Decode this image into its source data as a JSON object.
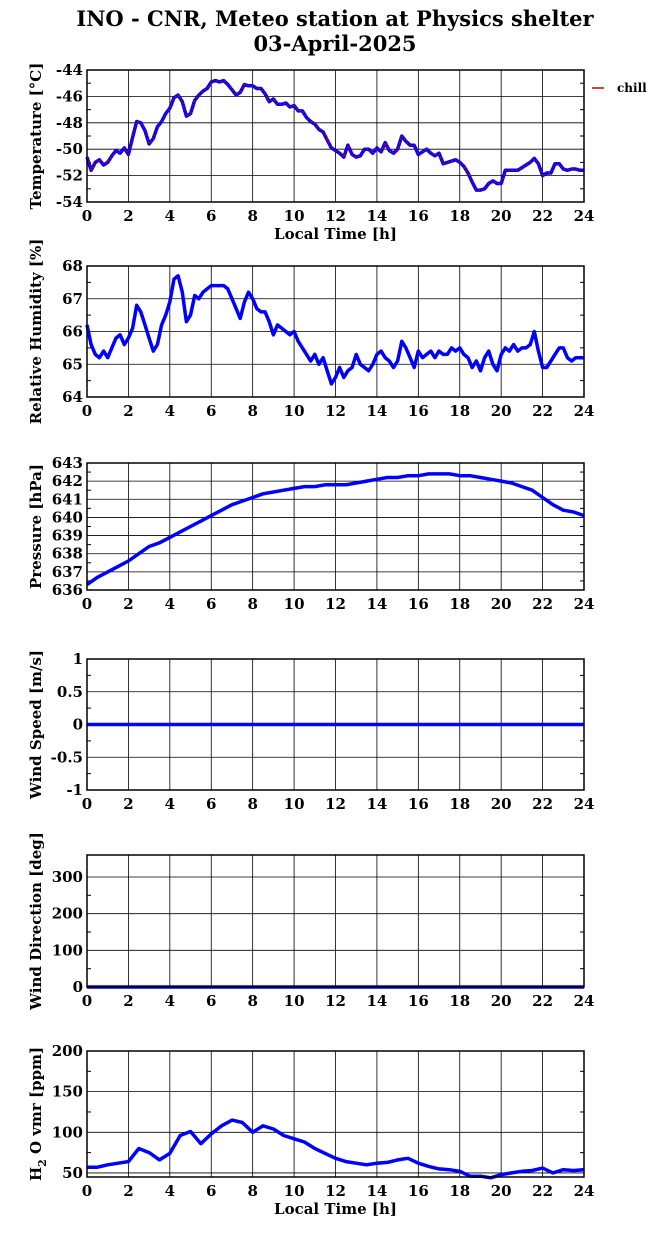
{
  "title": {
    "line1": "INO - CNR, Meteo station at Physics shelter",
    "line2": "03-April-2025"
  },
  "colors": {
    "series": "#0000ff",
    "chill": "#cc0000",
    "axis": "#000000"
  },
  "chart_data": [
    {
      "id": "temperature",
      "type": "line",
      "ylabel": "Temperature [°C]",
      "xlabel": "Local Time [h]",
      "xlim": [
        0,
        24
      ],
      "ylim": [
        -54,
        -44
      ],
      "xticks": [
        0,
        2,
        4,
        6,
        8,
        10,
        12,
        14,
        16,
        18,
        20,
        22,
        24
      ],
      "yticks": [
        -54,
        -52,
        -50,
        -48,
        -46,
        -44
      ],
      "grid": true,
      "legend": {
        "entries": [
          "chill"
        ],
        "placement": "right"
      },
      "series": [
        {
          "name": "",
          "color": "#0000ff",
          "x": [
            0,
            0.2,
            0.4,
            0.6,
            0.8,
            1.0,
            1.2,
            1.4,
            1.6,
            1.8,
            2.0,
            2.2,
            2.4,
            2.6,
            2.8,
            3.0,
            3.2,
            3.4,
            3.6,
            3.8,
            4.0,
            4.2,
            4.4,
            4.6,
            4.8,
            5.0,
            5.2,
            5.4,
            5.6,
            5.8,
            6.0,
            6.2,
            6.4,
            6.6,
            6.8,
            7.0,
            7.2,
            7.4,
            7.6,
            7.8,
            8.0,
            8.2,
            8.4,
            8.6,
            8.8,
            9.0,
            9.2,
            9.4,
            9.6,
            9.8,
            10.0,
            10.2,
            10.4,
            10.6,
            10.8,
            11.0,
            11.2,
            11.4,
            11.6,
            11.8,
            12.0,
            12.2,
            12.4,
            12.6,
            12.8,
            13.0,
            13.2,
            13.4,
            13.6,
            13.8,
            14.0,
            14.2,
            14.4,
            14.6,
            14.8,
            15.0,
            15.2,
            15.4,
            15.6,
            15.8,
            16.0,
            16.2,
            16.4,
            16.6,
            16.8,
            17.0,
            17.2,
            17.4,
            17.6,
            17.8,
            18.0,
            18.2,
            18.4,
            18.6,
            18.8,
            19.0,
            19.2,
            19.4,
            19.6,
            19.8,
            20.0,
            20.2,
            20.4,
            20.6,
            20.8,
            21.0,
            21.2,
            21.4,
            21.6,
            21.8,
            22.0,
            22.2,
            22.4,
            22.6,
            22.8,
            23.0,
            23.2,
            23.4,
            23.6,
            23.8,
            24.0
          ],
          "y": [
            -50.6,
            -51.6,
            -51.0,
            -50.8,
            -51.2,
            -51.0,
            -50.5,
            -50.1,
            -50.3,
            -49.9,
            -50.4,
            -49.1,
            -47.9,
            -48.0,
            -48.6,
            -49.6,
            -49.2,
            -48.3,
            -47.9,
            -47.3,
            -46.9,
            -46.1,
            -45.9,
            -46.4,
            -47.5,
            -47.3,
            -46.3,
            -45.9,
            -45.6,
            -45.4,
            -44.9,
            -44.8,
            -44.9,
            -44.8,
            -45.1,
            -45.5,
            -45.9,
            -45.7,
            -45.1,
            -45.2,
            -45.2,
            -45.4,
            -45.4,
            -45.8,
            -46.4,
            -46.2,
            -46.6,
            -46.6,
            -46.5,
            -46.8,
            -46.7,
            -47.1,
            -47.1,
            -47.6,
            -47.9,
            -48.1,
            -48.5,
            -48.7,
            -49.3,
            -49.9,
            -50.1,
            -50.3,
            -50.6,
            -49.7,
            -50.4,
            -50.6,
            -50.5,
            -50.0,
            -50.0,
            -50.3,
            -49.9,
            -50.2,
            -49.5,
            -50.1,
            -50.3,
            -50.0,
            -49.0,
            -49.4,
            -49.7,
            -49.7,
            -50.4,
            -50.2,
            -50.0,
            -50.3,
            -50.5,
            -50.3,
            -51.1,
            -51.0,
            -50.9,
            -50.8,
            -51.0,
            -51.3,
            -51.8,
            -52.5,
            -53.1,
            -53.1,
            -53.0,
            -52.6,
            -52.4,
            -52.6,
            -52.6,
            -51.6,
            -51.6,
            -51.6,
            -51.6,
            -51.4,
            -51.2,
            -51.0,
            -50.7,
            -51.1,
            -52.0,
            -51.8,
            -51.8,
            -51.1,
            -51.1,
            -51.5,
            -51.6,
            -51.5,
            -51.5,
            -51.6,
            -51.6
          ]
        }
      ]
    },
    {
      "id": "humidity",
      "type": "line",
      "ylabel": "Relative Humidity [%]",
      "xlim": [
        0,
        24
      ],
      "ylim": [
        64,
        68
      ],
      "xticks": [
        0,
        2,
        4,
        6,
        8,
        10,
        12,
        14,
        16,
        18,
        20,
        22,
        24
      ],
      "yticks": [
        64,
        65,
        66,
        67,
        68
      ],
      "grid": true,
      "series": [
        {
          "name": "",
          "color": "#0000ff",
          "x": [
            0,
            0.2,
            0.4,
            0.6,
            0.8,
            1.0,
            1.2,
            1.4,
            1.6,
            1.8,
            2.0,
            2.2,
            2.4,
            2.6,
            2.8,
            3.0,
            3.2,
            3.4,
            3.6,
            3.8,
            4.0,
            4.2,
            4.4,
            4.6,
            4.8,
            5.0,
            5.2,
            5.4,
            5.6,
            5.8,
            6.0,
            6.2,
            6.4,
            6.6,
            6.8,
            7.0,
            7.2,
            7.4,
            7.6,
            7.8,
            8.0,
            8.2,
            8.4,
            8.6,
            8.8,
            9.0,
            9.2,
            9.4,
            9.6,
            9.8,
            10.0,
            10.2,
            10.4,
            10.6,
            10.8,
            11.0,
            11.2,
            11.4,
            11.6,
            11.8,
            12.0,
            12.2,
            12.4,
            12.6,
            12.8,
            13.0,
            13.2,
            13.4,
            13.6,
            13.8,
            14.0,
            14.2,
            14.4,
            14.6,
            14.8,
            15.0,
            15.2,
            15.4,
            15.6,
            15.8,
            16.0,
            16.2,
            16.4,
            16.6,
            16.8,
            17.0,
            17.2,
            17.4,
            17.6,
            17.8,
            18.0,
            18.2,
            18.4,
            18.6,
            18.8,
            19.0,
            19.2,
            19.4,
            19.6,
            19.8,
            20.0,
            20.2,
            20.4,
            20.6,
            20.8,
            21.0,
            21.2,
            21.4,
            21.6,
            21.8,
            22.0,
            22.2,
            22.4,
            22.6,
            22.8,
            23.0,
            23.2,
            23.4,
            23.6,
            23.8,
            24.0
          ],
          "y": [
            66.2,
            65.6,
            65.3,
            65.2,
            65.4,
            65.2,
            65.5,
            65.8,
            65.9,
            65.6,
            65.8,
            66.1,
            66.8,
            66.6,
            66.2,
            65.8,
            65.4,
            65.6,
            66.2,
            66.5,
            66.9,
            67.6,
            67.7,
            67.2,
            66.3,
            66.5,
            67.1,
            67.0,
            67.2,
            67.3,
            67.4,
            67.4,
            67.4,
            67.4,
            67.3,
            67.0,
            66.7,
            66.4,
            66.9,
            67.2,
            67.0,
            66.7,
            66.6,
            66.6,
            66.3,
            65.9,
            66.2,
            66.1,
            66.0,
            65.9,
            66.0,
            65.7,
            65.5,
            65.3,
            65.1,
            65.3,
            65.0,
            65.2,
            64.8,
            64.4,
            64.6,
            64.9,
            64.6,
            64.8,
            64.9,
            65.3,
            65.0,
            64.9,
            64.8,
            65.0,
            65.3,
            65.4,
            65.2,
            65.1,
            64.9,
            65.1,
            65.7,
            65.5,
            65.2,
            64.9,
            65.4,
            65.2,
            65.3,
            65.4,
            65.2,
            65.4,
            65.3,
            65.3,
            65.5,
            65.4,
            65.5,
            65.3,
            65.2,
            64.9,
            65.1,
            64.8,
            65.2,
            65.4,
            65.0,
            64.8,
            65.3,
            65.5,
            65.4,
            65.6,
            65.4,
            65.5,
            65.5,
            65.6,
            66.0,
            65.4,
            64.9,
            64.9,
            65.1,
            65.3,
            65.5,
            65.5,
            65.2,
            65.1,
            65.2,
            65.2,
            65.2
          ]
        }
      ]
    },
    {
      "id": "pressure",
      "type": "line",
      "ylabel": "Pressure [hPa]",
      "xlim": [
        0,
        24
      ],
      "ylim": [
        636,
        643
      ],
      "xticks": [
        0,
        2,
        4,
        6,
        8,
        10,
        12,
        14,
        16,
        18,
        20,
        22,
        24
      ],
      "yticks": [
        636,
        637,
        638,
        639,
        640,
        641,
        642,
        643
      ],
      "grid": true,
      "series": [
        {
          "name": "",
          "color": "#0000ff",
          "x": [
            0,
            0.5,
            1.0,
            1.5,
            2.0,
            2.5,
            3.0,
            3.5,
            4.0,
            4.5,
            5.0,
            5.5,
            6.0,
            6.5,
            7.0,
            7.5,
            8.0,
            8.5,
            9.0,
            9.5,
            10.0,
            10.5,
            11.0,
            11.5,
            12.0,
            12.5,
            13.0,
            13.5,
            14.0,
            14.5,
            15.0,
            15.5,
            16.0,
            16.5,
            17.0,
            17.5,
            18.0,
            18.5,
            19.0,
            19.5,
            20.0,
            20.5,
            21.0,
            21.5,
            22.0,
            22.5,
            23.0,
            23.5,
            24.0
          ],
          "y": [
            636.3,
            636.7,
            637.0,
            637.3,
            637.6,
            638.0,
            638.4,
            638.6,
            638.9,
            639.2,
            639.5,
            639.8,
            640.1,
            640.4,
            640.7,
            640.9,
            641.1,
            641.3,
            641.4,
            641.5,
            641.6,
            641.7,
            641.7,
            641.8,
            641.8,
            641.8,
            641.9,
            642.0,
            642.1,
            642.2,
            642.2,
            642.3,
            642.3,
            642.4,
            642.4,
            642.4,
            642.3,
            642.3,
            642.2,
            642.1,
            642.0,
            641.9,
            641.7,
            641.5,
            641.1,
            640.7,
            640.4,
            640.3,
            640.1
          ]
        }
      ]
    },
    {
      "id": "wind-speed",
      "type": "line",
      "ylabel": "Wind Speed [m/s]",
      "xlim": [
        0,
        24
      ],
      "ylim": [
        -1,
        1
      ],
      "xticks": [
        0,
        2,
        4,
        6,
        8,
        10,
        12,
        14,
        16,
        18,
        20,
        22,
        24
      ],
      "yticks": [
        -1,
        -0.5,
        0,
        0.5,
        1
      ],
      "grid": true,
      "series": [
        {
          "name": "",
          "color": "#0000ff",
          "x": [
            0,
            24
          ],
          "y": [
            0,
            0
          ]
        }
      ]
    },
    {
      "id": "wind-direction",
      "type": "line",
      "ylabel": "Wind Direction [deg]",
      "xlim": [
        0,
        24
      ],
      "ylim": [
        0,
        360
      ],
      "xticks": [
        0,
        2,
        4,
        6,
        8,
        10,
        12,
        14,
        16,
        18,
        20,
        22,
        24
      ],
      "yticks": [
        0,
        100,
        200,
        300
      ],
      "grid": true,
      "series": [
        {
          "name": "",
          "color": "#0000ff",
          "x": [
            0,
            24
          ],
          "y": [
            0,
            0
          ]
        }
      ]
    },
    {
      "id": "h2o",
      "type": "line",
      "ylabel": "H2O vmr [ppm]",
      "ylabel_parts": [
        "H",
        "2",
        " O vmr [ppm]"
      ],
      "xlabel": "Local Time [h]",
      "xlim": [
        0,
        24
      ],
      "ylim": [
        45,
        200
      ],
      "xticks": [
        0,
        2,
        4,
        6,
        8,
        10,
        12,
        14,
        16,
        18,
        20,
        22,
        24
      ],
      "yticks": [
        50,
        100,
        150,
        200
      ],
      "grid": true,
      "series": [
        {
          "name": "",
          "color": "#0000ff",
          "x": [
            0,
            0.5,
            1.0,
            1.5,
            2.0,
            2.5,
            3.0,
            3.5,
            4.0,
            4.5,
            5.0,
            5.5,
            6.0,
            6.5,
            7.0,
            7.5,
            8.0,
            8.5,
            9.0,
            9.5,
            10.0,
            10.5,
            11.0,
            11.5,
            12.0,
            12.5,
            13.0,
            13.5,
            14.0,
            14.5,
            15.0,
            15.5,
            16.0,
            16.5,
            17.0,
            17.5,
            18.0,
            18.5,
            19.0,
            19.5,
            20.0,
            20.5,
            21.0,
            21.5,
            22.0,
            22.5,
            23.0,
            23.5,
            24.0
          ],
          "y": [
            57,
            57,
            60,
            62,
            64,
            80,
            75,
            66,
            74,
            96,
            101,
            86,
            98,
            108,
            115,
            112,
            100,
            108,
            104,
            96,
            92,
            88,
            80,
            74,
            68,
            64,
            62,
            60,
            62,
            63,
            66,
            68,
            62,
            58,
            55,
            54,
            52,
            46,
            46,
            44,
            48,
            50,
            52,
            53,
            56,
            50,
            54,
            53,
            54
          ]
        }
      ]
    }
  ]
}
